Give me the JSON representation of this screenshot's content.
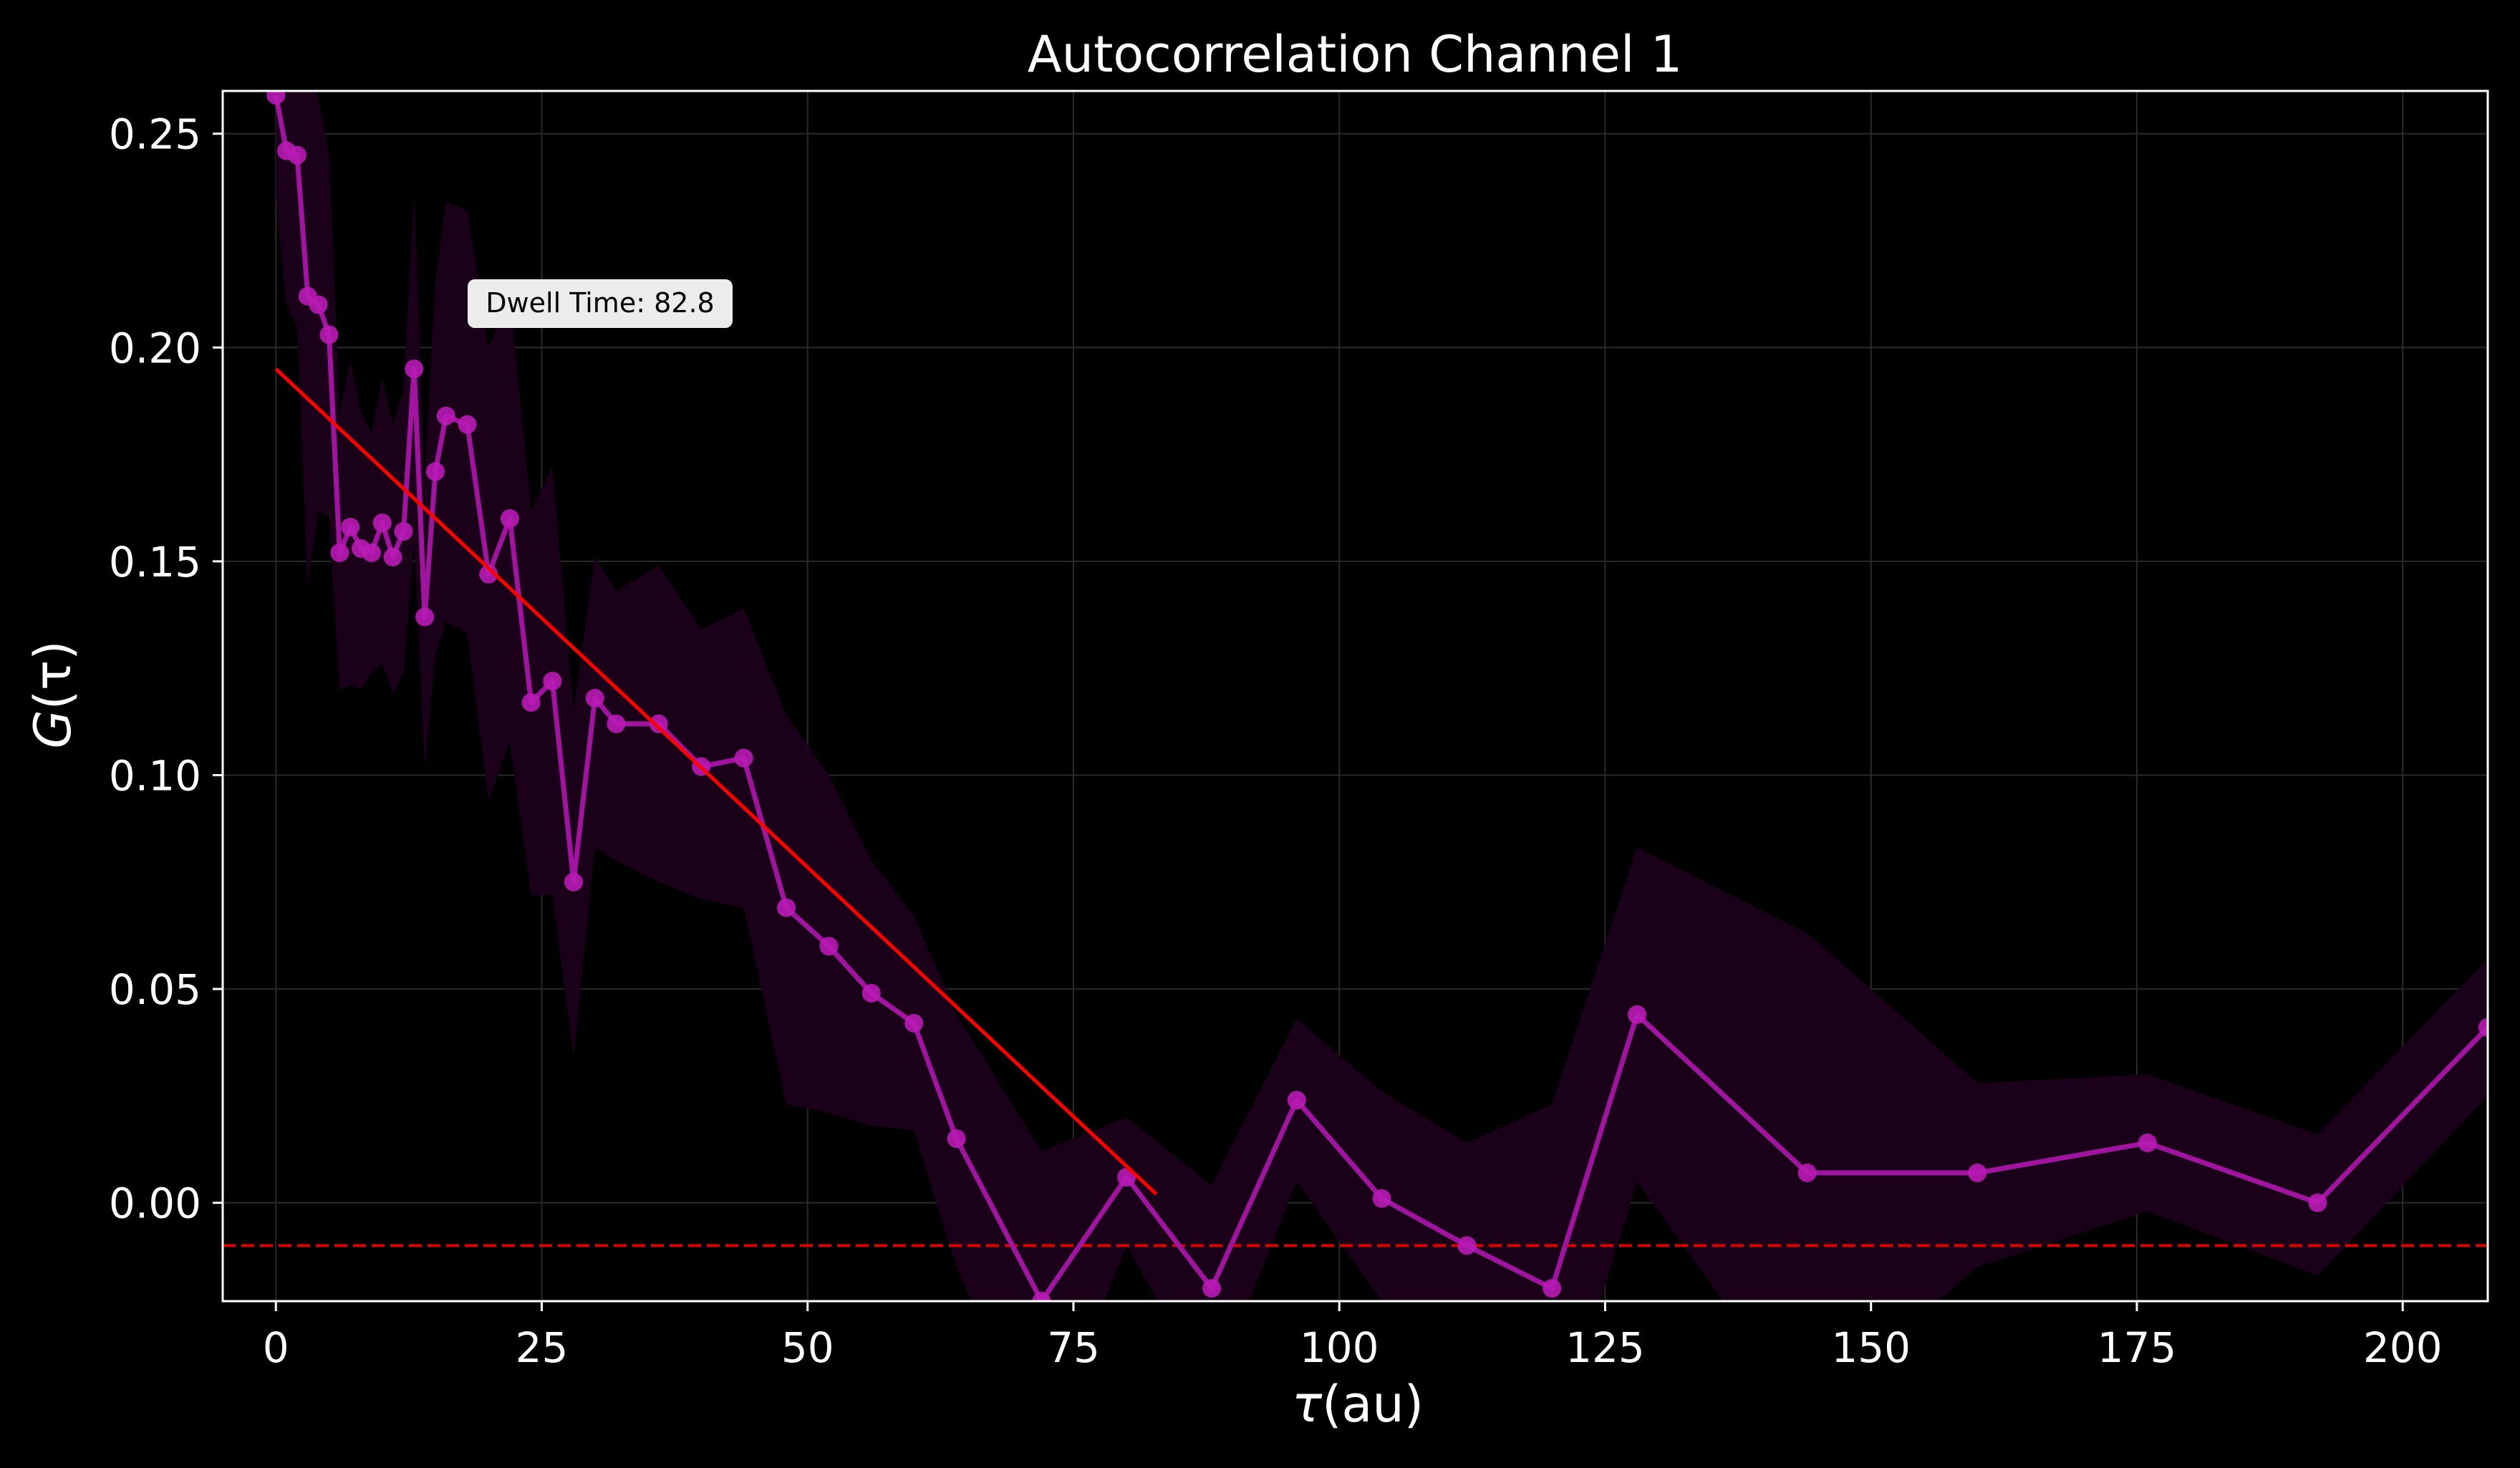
{
  "colors": {
    "background": "#000000",
    "axes": "#ffffff",
    "grid": "#2a2a2a",
    "series": "#a0149f",
    "marker": "#b81bb5",
    "band": "#1a0019",
    "fit": "#ff0000",
    "baseline": "#e00000",
    "annotation_bg": "#ececec"
  },
  "chart_data": {
    "type": "line",
    "title": "Autocorrelation Channel 1",
    "xlabel_symbol": "τ",
    "xlabel_unit": "(au)",
    "ylabel_symbol": "G",
    "ylabel_arg": "(τ)",
    "xlim": [
      -5,
      208
    ],
    "ylim": [
      -0.023,
      0.26
    ],
    "x_ticks": [
      0,
      25,
      50,
      75,
      100,
      125,
      150,
      175,
      200
    ],
    "x_tick_labels": [
      "0",
      "25",
      "50",
      "75",
      "100",
      "125",
      "150",
      "175",
      "200"
    ],
    "y_ticks": [
      0.0,
      0.05,
      0.1,
      0.15,
      0.2,
      0.25
    ],
    "y_tick_labels": [
      "0.00",
      "0.05",
      "0.10",
      "0.15",
      "0.20",
      "0.25"
    ],
    "grid": true,
    "series": [
      {
        "style": "line-with-markers",
        "x": [
          0,
          1,
          2,
          3,
          4,
          5,
          6,
          7,
          8,
          9,
          10,
          11,
          12,
          13,
          14,
          15,
          16,
          18,
          20,
          22,
          24,
          26,
          28,
          30,
          32,
          36,
          40,
          44,
          48,
          52,
          56,
          60,
          64,
          72,
          80,
          88,
          96,
          104,
          112,
          120,
          128,
          144,
          160,
          176,
          192,
          208
        ],
        "y": [
          0.259,
          0.246,
          0.245,
          0.212,
          0.21,
          0.203,
          0.152,
          0.158,
          0.153,
          0.152,
          0.159,
          0.151,
          0.157,
          0.195,
          0.137,
          0.171,
          0.184,
          0.182,
          0.147,
          0.16,
          0.117,
          0.122,
          0.075,
          0.118,
          0.112,
          0.112,
          0.102,
          0.104,
          0.069,
          0.06,
          0.049,
          0.042,
          0.015,
          -0.023,
          0.006,
          -0.02,
          0.024,
          0.001,
          -0.01,
          -0.02,
          0.044,
          0.007,
          0.007,
          0.014,
          0.0,
          0.041
        ]
      }
    ],
    "error_band": {
      "x": [
        0,
        1,
        2,
        3,
        4,
        5,
        6,
        7,
        8,
        9,
        10,
        11,
        12,
        13,
        14,
        15,
        16,
        18,
        20,
        22,
        24,
        26,
        28,
        30,
        32,
        36,
        40,
        44,
        48,
        52,
        56,
        60,
        64,
        72,
        80,
        88,
        96,
        104,
        112,
        120,
        128,
        144,
        160,
        176,
        192,
        208
      ],
      "upper": [
        0.285,
        0.285,
        0.285,
        0.27,
        0.258,
        0.245,
        0.185,
        0.197,
        0.185,
        0.18,
        0.193,
        0.182,
        0.19,
        0.236,
        0.17,
        0.215,
        0.234,
        0.232,
        0.2,
        0.212,
        0.162,
        0.172,
        0.115,
        0.151,
        0.143,
        0.149,
        0.134,
        0.139,
        0.114,
        0.1,
        0.08,
        0.067,
        0.044,
        0.012,
        0.02,
        0.004,
        0.043,
        0.026,
        0.014,
        0.023,
        0.083,
        0.063,
        0.028,
        0.03,
        0.016,
        0.057
      ],
      "lower": [
        0.235,
        0.21,
        0.205,
        0.144,
        0.162,
        0.16,
        0.12,
        0.121,
        0.12,
        0.124,
        0.126,
        0.119,
        0.124,
        0.155,
        0.102,
        0.128,
        0.136,
        0.133,
        0.094,
        0.108,
        0.072,
        0.072,
        0.034,
        0.083,
        0.08,
        0.075,
        0.071,
        0.069,
        0.023,
        0.021,
        0.018,
        0.017,
        -0.015,
        -0.06,
        -0.01,
        -0.045,
        0.005,
        -0.023,
        -0.035,
        -0.06,
        0.005,
        -0.05,
        -0.015,
        -0.002,
        -0.017,
        0.025
      ]
    },
    "fit_line": {
      "x": [
        0,
        82.8
      ],
      "y": [
        0.195,
        0.002
      ]
    },
    "baseline": {
      "y": -0.01,
      "style": "dashed"
    },
    "annotations": [
      {
        "text": "Dwell Time: 82.8",
        "x": 19.5,
        "y": 0.21
      }
    ]
  }
}
